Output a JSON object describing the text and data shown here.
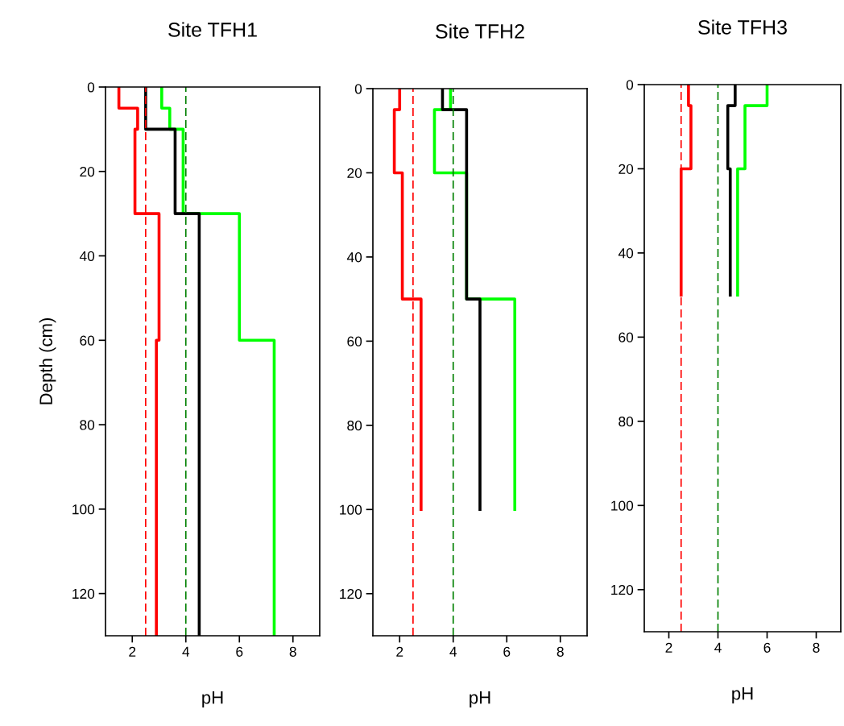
{
  "chart_data": [
    {
      "type": "line",
      "title": "Site TFH1",
      "xlabel": "pH",
      "ylabel": "Depth (cm)",
      "xlim": [
        1,
        9
      ],
      "xticks": [
        2,
        4,
        6,
        8
      ],
      "ylim": [
        130,
        0
      ],
      "yticks": [
        0,
        20,
        40,
        60,
        80,
        100,
        120
      ],
      "series": [
        {
          "color": "#ff0000",
          "x": [
            1.5,
            1.5,
            2.2,
            2.2,
            2.1,
            2.1,
            3.0,
            3.0,
            2.9,
            2.9
          ],
          "values": [
            0,
            5,
            5,
            10,
            10,
            30,
            30,
            60,
            60,
            130
          ]
        },
        {
          "color": "#00ff00",
          "x": [
            3.1,
            3.1,
            3.4,
            3.4,
            3.9,
            3.9,
            6.0,
            6.0,
            7.3,
            7.3
          ],
          "values": [
            0,
            5,
            5,
            10,
            10,
            30,
            30,
            60,
            60,
            130
          ]
        },
        {
          "color": "#000000",
          "x": [
            2.5,
            2.5,
            3.6,
            3.6,
            4.5,
            4.5
          ],
          "values": [
            0,
            10,
            10,
            30,
            30,
            130
          ]
        }
      ],
      "ref_lines": [
        {
          "axis": "x",
          "value": 2.5,
          "color": "#ff0000",
          "line_style": "dashed"
        },
        {
          "axis": "x",
          "value": 4,
          "color": "#008000",
          "line_style": "dashed"
        }
      ]
    },
    {
      "type": "line",
      "title": "Site TFH2",
      "xlabel": "pH",
      "xlim": [
        1,
        9
      ],
      "xticks": [
        2,
        4,
        6,
        8
      ],
      "ylim": [
        130,
        0
      ],
      "yticks": [
        0,
        20,
        40,
        60,
        80,
        100,
        120
      ],
      "series": [
        {
          "color": "#ff0000",
          "x": [
            2.0,
            2.0,
            1.8,
            1.8,
            2.1,
            2.1,
            2.8,
            2.8
          ],
          "values": [
            0,
            5,
            5,
            20,
            20,
            50,
            50,
            100
          ]
        },
        {
          "color": "#00ff00",
          "x": [
            3.9,
            3.9,
            3.3,
            3.3,
            4.5,
            4.5,
            6.3,
            6.3
          ],
          "values": [
            0,
            5,
            5,
            20,
            20,
            50,
            50,
            100
          ]
        },
        {
          "color": "#000000",
          "x": [
            3.6,
            3.6,
            4.5,
            4.5,
            5.0,
            5.0
          ],
          "values": [
            0,
            5,
            5,
            50,
            50,
            100
          ]
        }
      ],
      "ref_lines": [
        {
          "axis": "x",
          "value": 2.5,
          "color": "#ff0000",
          "line_style": "dashed"
        },
        {
          "axis": "x",
          "value": 4,
          "color": "#008000",
          "line_style": "dashed"
        }
      ]
    },
    {
      "type": "line",
      "title": "Site TFH3",
      "xlabel": "pH",
      "xlim": [
        1,
        9
      ],
      "xticks": [
        2,
        4,
        6,
        8
      ],
      "ylim": [
        130,
        0
      ],
      "yticks": [
        0,
        20,
        40,
        60,
        80,
        100,
        120
      ],
      "series": [
        {
          "color": "#ff0000",
          "x": [
            2.8,
            2.8,
            2.9,
            2.9,
            2.5,
            2.5
          ],
          "values": [
            0,
            5,
            5,
            20,
            20,
            50
          ]
        },
        {
          "color": "#00ff00",
          "x": [
            6.0,
            6.0,
            5.1,
            5.1,
            4.8,
            4.8
          ],
          "values": [
            0,
            5,
            5,
            20,
            20,
            50
          ]
        },
        {
          "color": "#000000",
          "x": [
            4.7,
            4.7,
            4.4,
            4.4,
            4.5,
            4.5
          ],
          "values": [
            0,
            5,
            5,
            20,
            20,
            50
          ]
        }
      ],
      "ref_lines": [
        {
          "axis": "x",
          "value": 2.5,
          "color": "#ff0000",
          "line_style": "dashed"
        },
        {
          "axis": "x",
          "value": 4,
          "color": "#008000",
          "line_style": "dashed"
        }
      ]
    }
  ]
}
